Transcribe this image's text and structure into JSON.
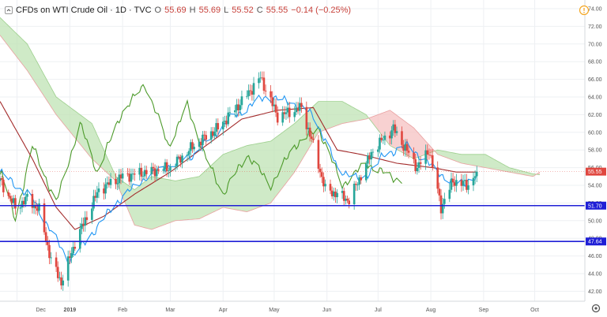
{
  "header": {
    "symbol": "CFDs on WTI Crude Oil · 1D · TVC",
    "o_label": "O",
    "o_value": "55.69",
    "h_label": "H",
    "h_value": "55.69",
    "l_label": "L",
    "l_value": "55.52",
    "c_label": "C",
    "c_value": "55.55",
    "change": "−0.14 (−0.25%)",
    "collapse_icon": "chevron-up-icon"
  },
  "colors": {
    "up": "#26a69a",
    "down": "#e0473f",
    "tenkan": "#2196f3",
    "kijun": "#a32b2b",
    "chikou": "#4c9a2a",
    "cloud_bull": "#bfe3b4",
    "cloud_bear": "#f6c1c1",
    "hline": "#1f1fd6",
    "price_badge": "#e0473f"
  },
  "chart_data": {
    "type": "candlestick",
    "title": "CFDs on WTI Crude Oil · 1D · TVC",
    "interval": "1D",
    "ylim": [
      41,
      75
    ],
    "y_ticks": [
      "74.00",
      "72.00",
      "70.00",
      "68.00",
      "66.00",
      "64.00",
      "62.00",
      "60.00",
      "58.00",
      "56.00",
      "54.00",
      "52.00",
      "50.00",
      "48.00",
      "46.00",
      "44.00",
      "42.00"
    ],
    "x_ticks": [
      "Dec",
      "2019",
      "Feb",
      "Mar",
      "Apr",
      "May",
      "Jun",
      "Jul",
      "Aug",
      "Sep",
      "Oct"
    ],
    "last_price": "55.55",
    "levels": [
      {
        "value": 51.7,
        "label": "51.70"
      },
      {
        "value": 47.64,
        "label": "47.64"
      }
    ],
    "ohlc_waypoints": [
      {
        "date": "2018-11-21",
        "close": 54.5
      },
      {
        "date": "2018-11-30",
        "close": 51.5
      },
      {
        "date": "2018-12-07",
        "close": 52.5
      },
      {
        "date": "2018-12-14",
        "close": 51.2
      },
      {
        "date": "2018-12-21",
        "close": 45.5
      },
      {
        "date": "2018-12-27",
        "close": 43.0
      },
      {
        "date": "2019-01-04",
        "close": 47.5
      },
      {
        "date": "2019-01-18",
        "close": 53.5
      },
      {
        "date": "2019-02-01",
        "close": 55.0
      },
      {
        "date": "2019-02-15",
        "close": 55.5
      },
      {
        "date": "2019-03-01",
        "close": 56.0
      },
      {
        "date": "2019-03-15",
        "close": 58.5
      },
      {
        "date": "2019-03-29",
        "close": 60.5
      },
      {
        "date": "2019-04-12",
        "close": 63.5
      },
      {
        "date": "2019-04-23",
        "close": 66.2
      },
      {
        "date": "2019-05-03",
        "close": 61.8
      },
      {
        "date": "2019-05-17",
        "close": 62.8
      },
      {
        "date": "2019-05-24",
        "close": 58.5
      },
      {
        "date": "2019-05-31",
        "close": 53.5
      },
      {
        "date": "2019-06-07",
        "close": 53.0
      },
      {
        "date": "2019-06-14",
        "close": 52.3
      },
      {
        "date": "2019-06-28",
        "close": 58.0
      },
      {
        "date": "2019-07-10",
        "close": 60.4
      },
      {
        "date": "2019-07-24",
        "close": 56.0
      },
      {
        "date": "2019-07-31",
        "close": 58.0
      },
      {
        "date": "2019-08-07",
        "close": 51.5
      },
      {
        "date": "2019-08-14",
        "close": 54.5
      },
      {
        "date": "2019-08-23",
        "close": 54.0
      },
      {
        "date": "2019-08-28",
        "close": 55.55
      }
    ],
    "tenkan_waypoints": [
      {
        "date": "2018-11-21",
        "value": 55.5
      },
      {
        "date": "2018-12-10",
        "value": 52.5
      },
      {
        "date": "2018-12-31",
        "value": 45.5
      },
      {
        "date": "2019-01-10",
        "value": 47.5
      },
      {
        "date": "2019-01-28",
        "value": 52.0
      },
      {
        "date": "2019-02-15",
        "value": 55.0
      },
      {
        "date": "2019-03-15",
        "value": 57.5
      },
      {
        "date": "2019-04-05",
        "value": 61.5
      },
      {
        "date": "2019-04-25",
        "value": 64.0
      },
      {
        "date": "2019-05-10",
        "value": 63.5
      },
      {
        "date": "2019-05-24",
        "value": 62.0
      },
      {
        "date": "2019-06-07",
        "value": 56.0
      },
      {
        "date": "2019-06-21",
        "value": 54.5
      },
      {
        "date": "2019-07-05",
        "value": 57.5
      },
      {
        "date": "2019-07-19",
        "value": 58.5
      },
      {
        "date": "2019-08-02",
        "value": 56.0
      },
      {
        "date": "2019-08-16",
        "value": 54.0
      },
      {
        "date": "2019-08-28",
        "value": 55.0
      }
    ],
    "kijun_waypoints": [
      {
        "date": "2018-11-21",
        "value": 63.5
      },
      {
        "date": "2018-12-10",
        "value": 57.0
      },
      {
        "date": "2018-12-24",
        "value": 51.5
      },
      {
        "date": "2019-01-04",
        "value": 49.0
      },
      {
        "date": "2019-01-21",
        "value": 50.5
      },
      {
        "date": "2019-02-08",
        "value": 53.0
      },
      {
        "date": "2019-03-01",
        "value": 55.5
      },
      {
        "date": "2019-03-22",
        "value": 58.5
      },
      {
        "date": "2019-04-12",
        "value": 61.5
      },
      {
        "date": "2019-05-03",
        "value": 62.5
      },
      {
        "date": "2019-05-24",
        "value": 62.8
      },
      {
        "date": "2019-06-07",
        "value": 58.0
      },
      {
        "date": "2019-06-21",
        "value": 57.5
      },
      {
        "date": "2019-07-12",
        "value": 56.5
      },
      {
        "date": "2019-08-02",
        "value": 56.0
      },
      {
        "date": "2019-08-16",
        "value": 55.5
      },
      {
        "date": "2019-08-28",
        "value": 55.5
      }
    ],
    "chikou_waypoints": [
      {
        "date": "2018-10-10",
        "value": 48.0
      },
      {
        "date": "2018-10-24",
        "value": 55.0
      },
      {
        "date": "2018-11-10",
        "value": 52.0
      },
      {
        "date": "2018-11-22",
        "value": 55.5
      },
      {
        "date": "2018-11-30",
        "value": 50.0
      },
      {
        "date": "2018-12-10",
        "value": 58.5
      },
      {
        "date": "2018-12-24",
        "value": 52.0
      },
      {
        "date": "2019-01-07",
        "value": 61.0
      },
      {
        "date": "2019-01-17",
        "value": 55.5
      },
      {
        "date": "2019-01-31",
        "value": 62.0
      },
      {
        "date": "2019-02-14",
        "value": 65.5
      },
      {
        "date": "2019-02-28",
        "value": 58.5
      },
      {
        "date": "2019-03-11",
        "value": 63.0
      },
      {
        "date": "2019-03-21",
        "value": 57.5
      },
      {
        "date": "2019-04-01",
        "value": 53.0
      },
      {
        "date": "2019-04-15",
        "value": 57.5
      },
      {
        "date": "2019-04-29",
        "value": 54.0
      },
      {
        "date": "2019-05-13",
        "value": 58.5
      },
      {
        "date": "2019-05-27",
        "value": 60.5
      },
      {
        "date": "2019-06-10",
        "value": 54.0
      },
      {
        "date": "2019-06-24",
        "value": 56.5
      },
      {
        "date": "2019-07-08",
        "value": 55.0
      },
      {
        "date": "2019-07-15",
        "value": 54.5
      }
    ],
    "cloud_waypoints": [
      {
        "date": "2018-11-21",
        "a": 73.0,
        "b": 71.0
      },
      {
        "date": "2018-12-07",
        "a": 70.0,
        "b": 67.0
      },
      {
        "date": "2018-12-24",
        "a": 64.0,
        "b": 62.0
      },
      {
        "date": "2019-01-14",
        "a": 61.0,
        "b": 57.0
      },
      {
        "date": "2019-01-28",
        "a": 55.0,
        "b": 54.5
      },
      {
        "date": "2019-02-08",
        "a": 53.5,
        "b": 49.5
      },
      {
        "date": "2019-02-18",
        "a": 55.0,
        "b": 49.0
      },
      {
        "date": "2019-03-04",
        "a": 54.5,
        "b": 50.0
      },
      {
        "date": "2019-03-18",
        "a": 55.0,
        "b": 50.2
      },
      {
        "date": "2019-04-01",
        "a": 57.5,
        "b": 51.5
      },
      {
        "date": "2019-04-15",
        "a": 58.5,
        "b": 51.0
      },
      {
        "date": "2019-04-29",
        "a": 59.0,
        "b": 52.0
      },
      {
        "date": "2019-05-13",
        "a": 61.0,
        "b": 55.5
      },
      {
        "date": "2019-05-27",
        "a": 63.5,
        "b": 60.0
      },
      {
        "date": "2019-06-10",
        "a": 63.5,
        "b": 61.0
      },
      {
        "date": "2019-06-24",
        "a": 62.0,
        "b": 61.5
      },
      {
        "date": "2019-07-08",
        "a": 58.5,
        "b": 62.5
      },
      {
        "date": "2019-07-22",
        "a": 57.0,
        "b": 60.5
      },
      {
        "date": "2019-08-05",
        "a": 58.0,
        "b": 57.5
      },
      {
        "date": "2019-08-19",
        "a": 57.5,
        "b": 56.5
      },
      {
        "date": "2019-09-02",
        "a": 57.5,
        "b": 56.0
      },
      {
        "date": "2019-09-16",
        "a": 56.0,
        "b": 55.5
      },
      {
        "date": "2019-09-30",
        "a": 55.3,
        "b": 55.0
      },
      {
        "date": "2019-10-04",
        "a": 55.2,
        "b": 55.5
      }
    ]
  }
}
